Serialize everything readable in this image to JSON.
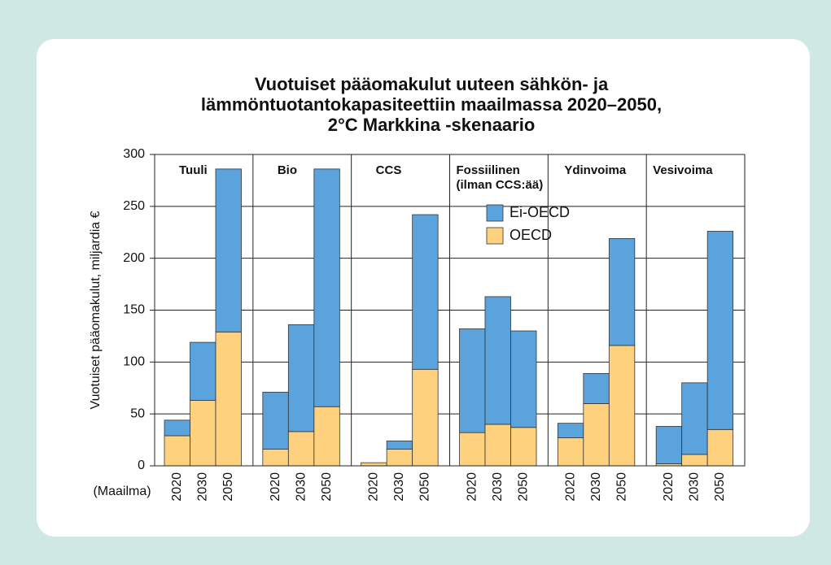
{
  "chart_data": {
    "type": "stacked_bar",
    "title": [
      "Vuotuiset pääomakulut uuteen sähkön- ja",
      "lämmöntuotantokapasiteettiin maailmassa 2020–2050,",
      "2°C Markkina -skenaario"
    ],
    "ylabel": "Vuotuiset pääomakulut, miljardia €",
    "xlabel": "(Maailma)",
    "groups": [
      [
        "Tuuli"
      ],
      [
        "Bio"
      ],
      [
        "CCS"
      ],
      [
        "Fossiilinen",
        "(ilman CCS:ää)"
      ],
      [
        "Ydinvoima"
      ],
      [
        "Vesivoima"
      ]
    ],
    "categories": [
      "2020",
      "2030",
      "2050",
      "2020",
      "2030",
      "2050",
      "2020",
      "2030",
      "2050",
      "2020",
      "2030",
      "2050",
      "2020",
      "2030",
      "2050",
      "2020",
      "2030",
      "2050"
    ],
    "series": [
      {
        "name": "OECD",
        "color": "#fdd17e",
        "values": [
          29,
          63,
          129,
          16,
          33,
          57,
          3,
          16,
          93,
          32,
          40,
          37,
          27,
          60,
          116,
          2,
          11,
          35
        ]
      },
      {
        "name": "Ei-OECD",
        "color": "#5ba3dc",
        "values": [
          15,
          56,
          157,
          55,
          103,
          229,
          0,
          8,
          149,
          100,
          123,
          93,
          14,
          29,
          103,
          36,
          69,
          191
        ]
      }
    ],
    "ylim": [
      0,
      300
    ],
    "yticks": [
      0,
      50,
      100,
      150,
      200,
      250,
      300
    ],
    "grid": true,
    "legend": "upper-center"
  }
}
